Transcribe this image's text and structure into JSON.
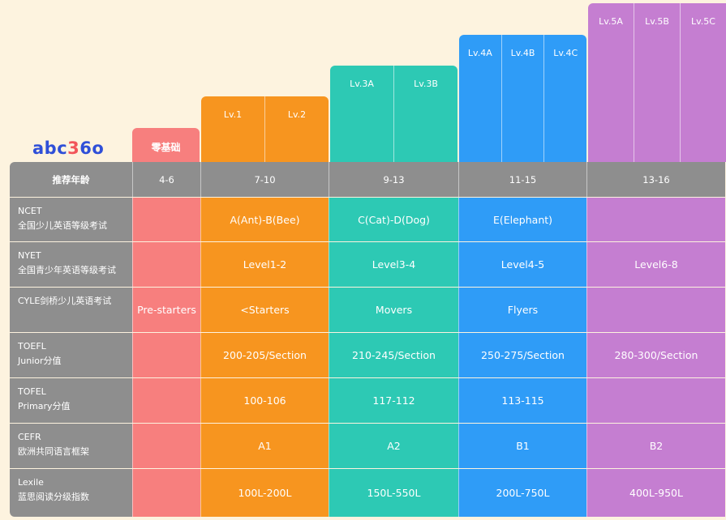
{
  "logo": {
    "text_a": "abc",
    "text_b": "3",
    "text_c": "6o"
  },
  "colors": {
    "background": "#fdf3df",
    "label_gray": "#8e8e8e",
    "zero": "#f77f7e",
    "orange": "#f7951f",
    "teal": "#2dc9b4",
    "blue": "#2f9cf7",
    "purple": "#c57ed1"
  },
  "level_groups": [
    {
      "levels": [
        "零基础"
      ]
    },
    {
      "levels": [
        "Lv.1",
        "Lv.2"
      ]
    },
    {
      "levels": [
        "Lv.3A",
        "Lv.3B"
      ]
    },
    {
      "levels": [
        "Lv.4A",
        "Lv.4B",
        "Lv.4C"
      ]
    },
    {
      "levels": [
        "Lv.5A",
        "Lv.5B",
        "Lv.5C"
      ]
    }
  ],
  "rows": [
    {
      "label1": "推荐年龄",
      "label2": "",
      "cells": [
        "4-6",
        "7-10",
        "9-13",
        "11-15",
        "13-16"
      ]
    },
    {
      "label1": "NCET",
      "label2": "全国少儿英语等级考试",
      "cells": [
        "",
        "A(Ant)-B(Bee)",
        "C(Cat)-D(Dog)",
        "E(Elephant)",
        ""
      ]
    },
    {
      "label1": "NYET",
      "label2": "全国青少年英语等级考试",
      "cells": [
        "",
        "Level1-2",
        "Level3-4",
        "Level4-5",
        "Level6-8"
      ]
    },
    {
      "label1": "CYLE剑桥少儿英语考试",
      "label2": "",
      "cells": [
        "Pre-starters",
        "<Starters",
        "Movers",
        "Flyers",
        ""
      ]
    },
    {
      "label1": "TOEFL",
      "label2": "Junior分值",
      "cells": [
        "",
        "200-205/Section",
        "210-245/Section",
        "250-275/Section",
        "280-300/Section"
      ]
    },
    {
      "label1": "TOFEL",
      "label2": "Primary分值",
      "cells": [
        "",
        "100-106",
        "117-112",
        "113-115",
        ""
      ]
    },
    {
      "label1": "CEFR",
      "label2": "欧洲共同语言框架",
      "cells": [
        "",
        "A1",
        "A2",
        "B1",
        "B2"
      ]
    },
    {
      "label1": "Lexile",
      "label2": "蓝思阅读分级指数",
      "cells": [
        "",
        "100L-200L",
        "150L-550L",
        "200L-750L",
        "400L-950L"
      ]
    }
  ]
}
